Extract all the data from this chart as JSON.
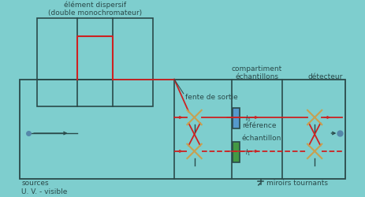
{
  "bg_color": "#7ecece",
  "line_color": "#2a4a4a",
  "red_color": "#cc2222",
  "mirror_color": "#c8a050",
  "ref_block_color": "#5599cc",
  "sample_block_color": "#449944",
  "dot_color": "#5588aa",
  "text_dispersif": "élément dispersif\n(double monochromateur)",
  "text_fente": "fente de sortie",
  "text_compartiment": "compartiment\néchantillons",
  "text_detecteur": "détecteur",
  "text_reference": "référence",
  "text_echantillon": "échantillon",
  "text_sources": "sources\nU. V. - visible",
  "text_miroirs": "miroirs tournants",
  "fontsize": 6.5
}
